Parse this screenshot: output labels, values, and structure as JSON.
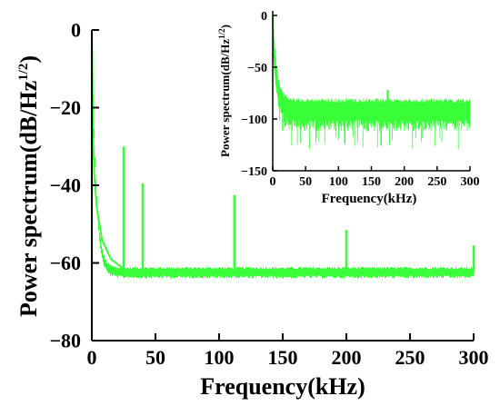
{
  "chart_data": [
    {
      "type": "line",
      "role": "main",
      "xlabel": "Frequency(kHz)",
      "ylabel": "Power spectrum(dB/Hz",
      "ylabel_sup": "1/2",
      "ylabel_tail": ")",
      "xlim": [
        0,
        300
      ],
      "ylim": [
        -80,
        0
      ],
      "xticks": [
        0,
        50,
        100,
        150,
        200,
        250,
        300
      ],
      "yticks": [
        0,
        -20,
        -40,
        -60,
        -80
      ],
      "ytick_labels": [
        "0",
        "−20",
        "−40",
        "−60",
        "−80"
      ],
      "line_color": "#39FF39",
      "noise_floor_db": -62.5,
      "noise_band_db": [
        -64,
        -61
      ],
      "decay": {
        "start_db": 0,
        "time_constant_khz": 3.2
      },
      "series": [
        {
          "values": [
            {
              "x": 0,
              "y": 0
            },
            {
              "x": 1,
              "y": -28
            },
            {
              "x": 2,
              "y": -38
            },
            {
              "x": 4,
              "y": -46
            },
            {
              "x": 8,
              "y": -54
            },
            {
              "x": 15,
              "y": -59
            },
            {
              "x": 25,
              "y": -61.5
            },
            {
              "x": 35,
              "y": -62.5
            },
            {
              "x": 300,
              "y": -62.5
            }
          ]
        }
      ],
      "peaks": [
        {
          "x": 25,
          "y": -30
        },
        {
          "x": 40,
          "y": -39.5
        },
        {
          "x": 112,
          "y": -42.5
        },
        {
          "x": 200,
          "y": -51.5
        },
        {
          "x": 300,
          "y": -55.5
        }
      ]
    },
    {
      "type": "line",
      "role": "inset",
      "xlabel": "Frequency(kHz)",
      "ylabel": "Power spectrum(dB/Hz",
      "ylabel_sup": "1/2",
      "ylabel_tail": ")",
      "xlim": [
        0,
        300
      ],
      "ylim": [
        -150,
        0
      ],
      "xticks": [
        0,
        50,
        100,
        150,
        200,
        250,
        300
      ],
      "yticks": [
        0,
        -50,
        -100,
        -150
      ],
      "ytick_labels": [
        "0",
        "−50",
        "−100",
        "−150"
      ],
      "line_color": "#39FF39",
      "noise_floor_db": -90,
      "noise_band_db": [
        -112,
        -80
      ],
      "decay": {
        "start_db": 0,
        "time_constant_khz": 6
      },
      "series": [
        {
          "values": [
            {
              "x": 0,
              "y": 0
            },
            {
              "x": 2,
              "y": -40
            },
            {
              "x": 5,
              "y": -62
            },
            {
              "x": 10,
              "y": -75
            },
            {
              "x": 20,
              "y": -84
            },
            {
              "x": 30,
              "y": -88
            },
            {
              "x": 300,
              "y": -90
            }
          ]
        }
      ],
      "peaks": [
        {
          "x": 175,
          "y": -72
        }
      ]
    }
  ]
}
